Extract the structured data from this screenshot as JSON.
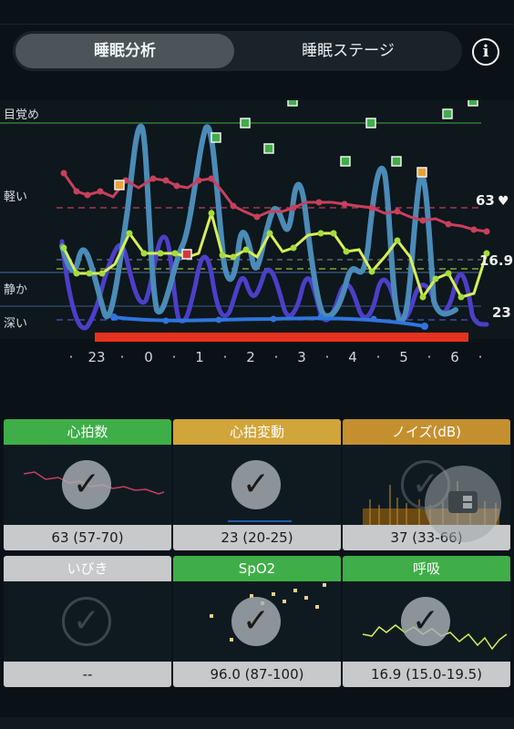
{
  "tabs": {
    "active": "睡眠分析",
    "inactive": "睡眠ステージ"
  },
  "info_icon": "info-icon",
  "stage_labels": {
    "awake": "目覚め",
    "light": "軽い",
    "quiet": "静か",
    "deep": "深い"
  },
  "right_values": {
    "heart_rate": "63",
    "breathing": "16.9",
    "hrv": "23"
  },
  "time_axis": [
    "23",
    "0",
    "1",
    "2",
    "3",
    "4",
    "5",
    "6"
  ],
  "colors": {
    "heart": "#d2415e",
    "breath": "#d8ef55",
    "stage": "#4a88b4",
    "deep": "#4a3bc2",
    "hrv": "#2f6ed6",
    "snore_bar": "#e5321f",
    "green": "#3fae48",
    "gold": "#c9a033"
  },
  "tiles": [
    {
      "name": "heart-rate",
      "title": "心拍数",
      "value": "63 (57-70)",
      "color": "#3fae48"
    },
    {
      "name": "hrv",
      "title": "心拍変動",
      "value": "23 (20-25)",
      "color": "#d0a53a"
    },
    {
      "name": "noise",
      "title": "ノイズ(dB)",
      "value": "37 (33-66)",
      "color": "#c4902f"
    },
    {
      "name": "snore",
      "title": "いびき",
      "value": "--",
      "color": "#c7c9cb"
    },
    {
      "name": "spo2",
      "title": "SpO2",
      "value": "96.0 (87-100)",
      "color": "#3fae48"
    },
    {
      "name": "breathing",
      "title": "呼吸",
      "value": "16.9 (15.0-19.5)",
      "color": "#3fae48"
    }
  ],
  "chart_data": {
    "type": "line",
    "x_ticks": [
      "23",
      "0",
      "1",
      "2",
      "3",
      "4",
      "5",
      "6"
    ],
    "y_categories": [
      "目覚め",
      "軽い",
      "静か",
      "深い"
    ],
    "series_right_labels": [
      "63",
      "16.9",
      "23"
    ]
  }
}
